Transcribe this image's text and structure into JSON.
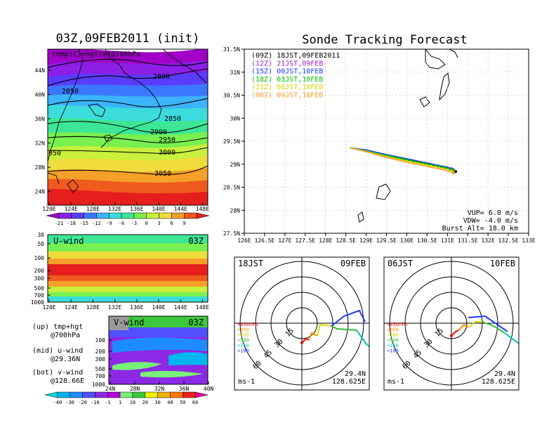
{
  "left_title": "03Z,09FEB2011 (init)",
  "map_panel": {
    "label": "temp(C)+hgt(m)@700hPa",
    "lat_ticks": [
      "44N",
      "40N",
      "36N",
      "32N",
      "28N",
      "24N"
    ],
    "lon_ticks": [
      "120E",
      "124E",
      "128E",
      "132E",
      "136E",
      "140E",
      "144E",
      "148E"
    ],
    "contour_labels": [
      "2800",
      "2850",
      "2850",
      "2900",
      "2950",
      "3000",
      "3050",
      "050"
    ],
    "colorbar_labels": [
      "-21",
      "-18",
      "-15",
      "-12",
      "-9",
      "-6",
      "-3",
      "0",
      "3",
      "6",
      "9"
    ]
  },
  "u_panel": {
    "label": "U-wind",
    "time": "03Z",
    "pressure_ticks": [
      "30",
      "50",
      "100",
      "200",
      "300",
      "500",
      "700",
      "1000"
    ],
    "lon_ticks": [
      "120E",
      "124E",
      "128E",
      "132E",
      "136E",
      "140E",
      "144E",
      "148E"
    ]
  },
  "v_panel": {
    "label": "V-wind",
    "time": "03Z",
    "pressure_ticks": [
      "100",
      "200",
      "300",
      "500",
      "700",
      "1000"
    ],
    "lat_ticks": [
      "24N",
      "28N",
      "32N",
      "36N",
      "40N"
    ],
    "colorbar_labels": [
      "-40",
      "-30",
      "-20",
      "-10",
      "-1",
      "1",
      "10",
      "20",
      "30",
      "40",
      "50",
      "60"
    ]
  },
  "legend_notes": {
    "up1": "(up) tmp+hgt",
    "up2": "@700hPa",
    "mid1": "(mid) u-wind",
    "mid2": "@29.36N",
    "bot1": "(bot) v-wind",
    "bot2": "@128.66E"
  },
  "right_title": "Sonde Tracking Forecast",
  "chart_data": {
    "type": "line",
    "title": "Sonde Tracking Forecast",
    "x_ticks": [
      "126E",
      "126.5E",
      "127E",
      "127.5E",
      "128E",
      "128.5E",
      "129E",
      "129.5E",
      "130E",
      "130.5E",
      "131E",
      "131.5E",
      "132E",
      "132.5E",
      "133E"
    ],
    "y_ticks": [
      "31.5N",
      "31N",
      "30.5N",
      "30N",
      "29.5N",
      "29N",
      "28.5N",
      "28N",
      "27.5N"
    ],
    "xlim": [
      126,
      133
    ],
    "ylim": [
      27.5,
      31.5
    ],
    "series": [
      {
        "name": "(09Z) 18JST,09FEB2011",
        "color": "#000000",
        "x": [
          128.6,
          129.0,
          129.5,
          130.0,
          130.5,
          131.0,
          131.2
        ],
        "y": [
          29.36,
          29.29,
          29.18,
          29.09,
          29.0,
          28.9,
          28.84
        ]
      },
      {
        "name": "(12Z) 21JST,09FEB",
        "color": "#9b1fd6",
        "x": [
          128.6,
          129.0,
          129.5,
          130.0,
          130.5,
          131.0,
          131.15
        ],
        "y": [
          29.36,
          29.3,
          29.2,
          29.12,
          29.03,
          28.93,
          28.88
        ]
      },
      {
        "name": "(15Z) 00JST,10FEB",
        "color": "#1e3cff",
        "x": [
          128.6,
          129.0,
          129.5,
          130.0,
          130.5,
          131.0,
          131.1
        ],
        "y": [
          29.36,
          29.31,
          29.21,
          29.12,
          29.02,
          28.94,
          28.9
        ]
      },
      {
        "name": "(18Z) 03JST,10FEB",
        "color": "#00c000",
        "x": [
          128.6,
          129.0,
          129.5,
          130.0,
          130.5,
          131.0,
          131.15
        ],
        "y": [
          29.36,
          29.29,
          29.19,
          29.1,
          29.01,
          28.92,
          28.87
        ]
      },
      {
        "name": "(21Z) 06JST,10FEB",
        "color": "#d8d800",
        "x": [
          128.6,
          129.0,
          129.5,
          130.0,
          130.5,
          131.0,
          131.1
        ],
        "y": [
          29.36,
          29.28,
          29.17,
          29.07,
          28.98,
          28.89,
          28.85
        ]
      },
      {
        "name": "(00Z) 09JST,10FEB",
        "color": "#ff9f2d",
        "x": [
          128.6,
          129.0,
          129.5,
          130.0,
          130.5,
          131.0,
          131.15
        ],
        "y": [
          29.36,
          29.27,
          29.15,
          29.04,
          28.95,
          28.86,
          28.81
        ]
      }
    ],
    "annotations": [
      "VUP= 6.0 m/s",
      "VDW= -4.0 m/s",
      "Burst Alt= 18.0 km"
    ]
  },
  "hodographs": [
    {
      "left_label": "18JST",
      "right_label": "09FEB",
      "ring_labels": [
        "15",
        "30",
        "45",
        "60"
      ],
      "levels": [
        ">850hPa",
        "<850",
        "<700",
        "<500",
        "<250",
        "<100"
      ],
      "unit": "ms-1",
      "lat": "29.4N",
      "lon": "128.625E"
    },
    {
      "left_label": "06JST",
      "right_label": "10FEB",
      "ring_labels": [
        "15",
        "30",
        "45",
        "60"
      ],
      "levels": [
        ">850hPa",
        "<850",
        "<700",
        "<500",
        "<250",
        "<100"
      ],
      "unit": "ms-1",
      "lat": "29.4N",
      "lon": "128.625E"
    }
  ],
  "level_colors": [
    "#e01010",
    "#ff8c00",
    "#d8d800",
    "#30c030",
    "#00c0c0",
    "#1e3cff"
  ],
  "temp_colors": [
    "#a000c8",
    "#8c1ee6",
    "#5a3cff",
    "#3c78ff",
    "#3cb4ff",
    "#3cdcdc",
    "#3ce696",
    "#78f050",
    "#c8f03c",
    "#f0dc3c",
    "#f5a028",
    "#f05a1e",
    "#e61e1e"
  ],
  "wind_colors": [
    "#00dcdc",
    "#00b4f0",
    "#1e8cff",
    "#5050ff",
    "#8c28e6",
    "#b400dc",
    "#78f078",
    "#3cc83c",
    "#f0f000",
    "#f0b400",
    "#ff7800",
    "#f01e1e",
    "#e60096"
  ]
}
